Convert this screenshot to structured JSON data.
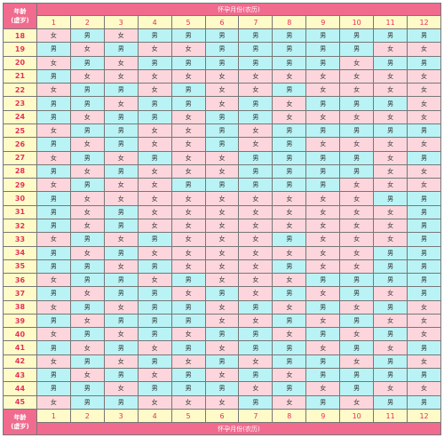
{
  "header": {
    "corner_line1": "年龄",
    "corner_line2": "(虚岁)",
    "title": "怀孕月份(农历)"
  },
  "footer": {
    "corner_line1": "年龄",
    "corner_line2": "(虚岁)",
    "title": "怀孕月份(农历)"
  },
  "months": [
    "1",
    "2",
    "3",
    "4",
    "5",
    "6",
    "7",
    "8",
    "9",
    "10",
    "11",
    "12"
  ],
  "labels": {
    "M": "男",
    "F": "女"
  },
  "colors": {
    "male_bg": "#b9f3f5",
    "female_bg": "#fcd6dc",
    "header_bg": "#f06b8e",
    "age_bg": "#fffbc8",
    "age_text": "#e8305a"
  },
  "rows": [
    {
      "age": "18",
      "g": [
        "F",
        "M",
        "F",
        "M",
        "M",
        "M",
        "M",
        "M",
        "M",
        "M",
        "M",
        "M"
      ]
    },
    {
      "age": "19",
      "g": [
        "M",
        "F",
        "M",
        "F",
        "F",
        "M",
        "M",
        "M",
        "M",
        "M",
        "F",
        "F"
      ]
    },
    {
      "age": "20",
      "g": [
        "F",
        "M",
        "F",
        "M",
        "M",
        "M",
        "M",
        "M",
        "M",
        "F",
        "M",
        "M"
      ]
    },
    {
      "age": "21",
      "g": [
        "M",
        "F",
        "F",
        "F",
        "F",
        "F",
        "F",
        "F",
        "F",
        "F",
        "F",
        "F"
      ]
    },
    {
      "age": "22",
      "g": [
        "F",
        "M",
        "M",
        "F",
        "M",
        "F",
        "F",
        "M",
        "F",
        "F",
        "F",
        "F"
      ]
    },
    {
      "age": "23",
      "g": [
        "M",
        "M",
        "F",
        "M",
        "M",
        "F",
        "M",
        "F",
        "M",
        "M",
        "M",
        "F"
      ]
    },
    {
      "age": "24",
      "g": [
        "M",
        "F",
        "M",
        "M",
        "F",
        "M",
        "M",
        "F",
        "F",
        "F",
        "F",
        "F"
      ]
    },
    {
      "age": "25",
      "g": [
        "F",
        "M",
        "M",
        "F",
        "F",
        "M",
        "F",
        "M",
        "M",
        "M",
        "M",
        "M"
      ]
    },
    {
      "age": "26",
      "g": [
        "M",
        "F",
        "M",
        "F",
        "F",
        "M",
        "F",
        "M",
        "F",
        "F",
        "F",
        "F"
      ]
    },
    {
      "age": "27",
      "g": [
        "F",
        "M",
        "F",
        "M",
        "F",
        "F",
        "M",
        "M",
        "M",
        "M",
        "F",
        "M"
      ]
    },
    {
      "age": "28",
      "g": [
        "M",
        "F",
        "M",
        "F",
        "F",
        "F",
        "M",
        "M",
        "M",
        "M",
        "F",
        "F"
      ]
    },
    {
      "age": "29",
      "g": [
        "F",
        "M",
        "F",
        "F",
        "M",
        "M",
        "M",
        "M",
        "M",
        "F",
        "F",
        "F"
      ]
    },
    {
      "age": "30",
      "g": [
        "M",
        "F",
        "F",
        "F",
        "F",
        "F",
        "F",
        "F",
        "F",
        "F",
        "M",
        "M"
      ]
    },
    {
      "age": "31",
      "g": [
        "M",
        "F",
        "M",
        "F",
        "F",
        "F",
        "F",
        "F",
        "F",
        "F",
        "F",
        "M"
      ]
    },
    {
      "age": "32",
      "g": [
        "M",
        "F",
        "M",
        "F",
        "F",
        "F",
        "F",
        "F",
        "F",
        "F",
        "F",
        "M"
      ]
    },
    {
      "age": "33",
      "g": [
        "F",
        "M",
        "F",
        "M",
        "F",
        "F",
        "F",
        "M",
        "F",
        "F",
        "F",
        "M"
      ]
    },
    {
      "age": "34",
      "g": [
        "M",
        "F",
        "M",
        "F",
        "F",
        "F",
        "F",
        "F",
        "F",
        "F",
        "M",
        "M"
      ]
    },
    {
      "age": "35",
      "g": [
        "M",
        "M",
        "F",
        "M",
        "F",
        "F",
        "F",
        "M",
        "F",
        "F",
        "M",
        "M"
      ]
    },
    {
      "age": "36",
      "g": [
        "F",
        "M",
        "M",
        "F",
        "M",
        "F",
        "F",
        "F",
        "M",
        "M",
        "M",
        "M"
      ]
    },
    {
      "age": "37",
      "g": [
        "M",
        "F",
        "M",
        "M",
        "F",
        "M",
        "F",
        "M",
        "F",
        "M",
        "F",
        "M"
      ]
    },
    {
      "age": "38",
      "g": [
        "F",
        "M",
        "F",
        "M",
        "M",
        "F",
        "M",
        "F",
        "M",
        "F",
        "M",
        "F"
      ]
    },
    {
      "age": "39",
      "g": [
        "M",
        "F",
        "M",
        "M",
        "M",
        "F",
        "F",
        "M",
        "F",
        "M",
        "F",
        "F"
      ]
    },
    {
      "age": "40",
      "g": [
        "F",
        "M",
        "F",
        "M",
        "F",
        "M",
        "M",
        "F",
        "M",
        "F",
        "M",
        "F"
      ]
    },
    {
      "age": "41",
      "g": [
        "M",
        "F",
        "M",
        "F",
        "M",
        "F",
        "M",
        "M",
        "F",
        "M",
        "F",
        "M"
      ]
    },
    {
      "age": "42",
      "g": [
        "F",
        "M",
        "F",
        "M",
        "F",
        "M",
        "F",
        "M",
        "M",
        "F",
        "M",
        "F"
      ]
    },
    {
      "age": "43",
      "g": [
        "M",
        "F",
        "M",
        "F",
        "M",
        "F",
        "M",
        "F",
        "M",
        "M",
        "M",
        "M"
      ]
    },
    {
      "age": "44",
      "g": [
        "M",
        "M",
        "F",
        "M",
        "M",
        "M",
        "F",
        "M",
        "F",
        "M",
        "F",
        "F"
      ]
    },
    {
      "age": "45",
      "g": [
        "F",
        "M",
        "M",
        "F",
        "F",
        "F",
        "M",
        "F",
        "M",
        "F",
        "M",
        "M"
      ]
    }
  ]
}
